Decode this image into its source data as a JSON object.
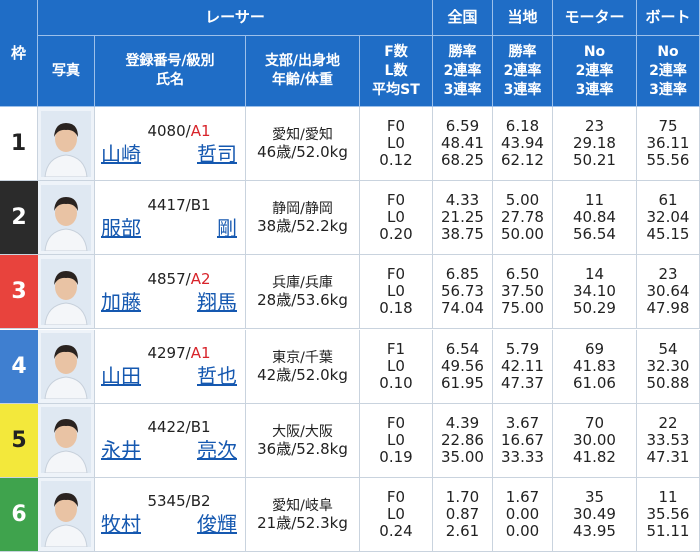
{
  "header": {
    "frame": "枠",
    "racer": "レーサー",
    "national": "全国",
    "local": "当地",
    "motor": "モーター",
    "boat": "ボート",
    "photo": "写真",
    "reg": [
      "登録番号/級別",
      "氏名"
    ],
    "branch": [
      "支部/出身地",
      "年齢/体重"
    ],
    "fl": [
      "F数",
      "L数",
      "平均ST"
    ],
    "national_sub": [
      "勝率",
      "2連率",
      "3連率"
    ],
    "local_sub": [
      "勝率",
      "2連率",
      "3連率"
    ],
    "motor_sub": [
      "No",
      "2連率",
      "3連率"
    ],
    "boat_sub": [
      "No",
      "2連率",
      "3連率"
    ]
  },
  "rows": [
    {
      "frame": "1",
      "reg": "4080/",
      "rank": "A1",
      "family": "山崎",
      "given": "哲司",
      "branch": "愛知/愛知",
      "age_weight": "46歳/52.0kg",
      "fl": [
        "F0",
        "L0",
        "0.12"
      ],
      "national": [
        "6.59",
        "48.41",
        "68.25"
      ],
      "local": [
        "6.18",
        "43.94",
        "62.12"
      ],
      "motor": [
        "23",
        "29.18",
        "50.21"
      ],
      "boat": [
        "75",
        "36.11",
        "55.56"
      ]
    },
    {
      "frame": "2",
      "reg": "4417/",
      "rank": "B1",
      "family": "服部",
      "given": "剛",
      "branch": "静岡/静岡",
      "age_weight": "38歳/52.2kg",
      "fl": [
        "F0",
        "L0",
        "0.20"
      ],
      "national": [
        "4.33",
        "21.25",
        "38.75"
      ],
      "local": [
        "5.00",
        "27.78",
        "50.00"
      ],
      "motor": [
        "11",
        "40.84",
        "56.54"
      ],
      "boat": [
        "61",
        "32.04",
        "45.15"
      ]
    },
    {
      "frame": "3",
      "reg": "4857/",
      "rank": "A2",
      "family": "加藤",
      "given": "翔馬",
      "branch": "兵庫/兵庫",
      "age_weight": "28歳/53.6kg",
      "fl": [
        "F0",
        "L0",
        "0.18"
      ],
      "national": [
        "6.85",
        "56.73",
        "74.04"
      ],
      "local": [
        "6.50",
        "37.50",
        "75.00"
      ],
      "motor": [
        "14",
        "34.10",
        "50.29"
      ],
      "boat": [
        "23",
        "30.64",
        "47.98"
      ]
    },
    {
      "frame": "4",
      "reg": "4297/",
      "rank": "A1",
      "family": "山田",
      "given": "哲也",
      "branch": "東京/千葉",
      "age_weight": "42歳/52.0kg",
      "fl": [
        "F1",
        "L0",
        "0.10"
      ],
      "national": [
        "6.54",
        "49.56",
        "61.95"
      ],
      "local": [
        "5.79",
        "42.11",
        "47.37"
      ],
      "motor": [
        "69",
        "41.83",
        "61.06"
      ],
      "boat": [
        "54",
        "32.30",
        "50.88"
      ]
    },
    {
      "frame": "5",
      "reg": "4422/",
      "rank": "B1",
      "family": "永井",
      "given": "亮次",
      "branch": "大阪/大阪",
      "age_weight": "36歳/52.8kg",
      "fl": [
        "F0",
        "L0",
        "0.19"
      ],
      "national": [
        "4.39",
        "22.86",
        "35.00"
      ],
      "local": [
        "3.67",
        "16.67",
        "33.33"
      ],
      "motor": [
        "70",
        "30.00",
        "41.82"
      ],
      "boat": [
        "22",
        "33.53",
        "47.31"
      ]
    },
    {
      "frame": "6",
      "reg": "5345/",
      "rank": "B2",
      "family": "牧村",
      "given": "俊輝",
      "branch": "愛知/岐阜",
      "age_weight": "21歳/52.3kg",
      "fl": [
        "F0",
        "L0",
        "0.24"
      ],
      "national": [
        "1.70",
        "0.87",
        "2.61"
      ],
      "local": [
        "1.67",
        "0.00",
        "0.00"
      ],
      "motor": [
        "35",
        "30.49",
        "43.95"
      ],
      "boat": [
        "11",
        "35.56",
        "51.11"
      ]
    }
  ]
}
